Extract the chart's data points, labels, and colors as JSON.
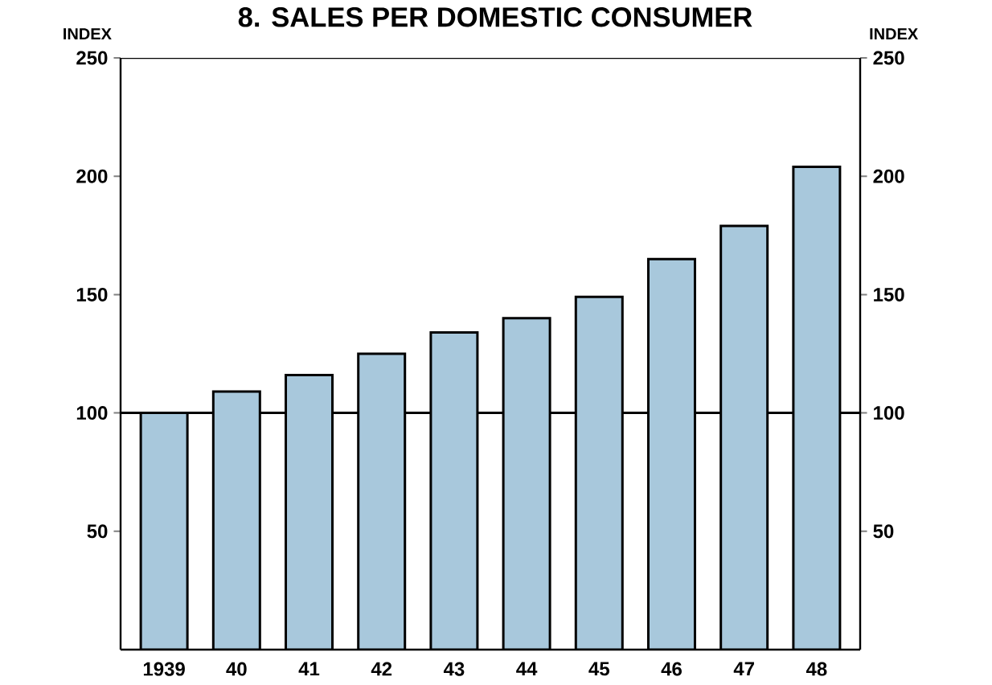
{
  "chart_data": {
    "type": "bar",
    "title": "8. SALES PER DOMESTIC CONSUMER",
    "ylabel": "INDEX",
    "y2label": "INDEX",
    "categories": [
      "1939",
      "40",
      "41",
      "42",
      "43",
      "44",
      "45",
      "46",
      "47",
      "48"
    ],
    "values": [
      100,
      109,
      116,
      125,
      134,
      140,
      149,
      165,
      179,
      204
    ],
    "color": "#a8c8dc",
    "ylim": [
      0,
      250
    ],
    "yticks": [
      50,
      100,
      150,
      200,
      250
    ],
    "y2lim": [
      0,
      250
    ],
    "y2ticks": [
      50,
      100,
      150,
      200,
      250
    ],
    "ref_lines": [
      {
        "axis": "y",
        "value": 100,
        "color": "#000000"
      }
    ],
    "grid": false
  }
}
